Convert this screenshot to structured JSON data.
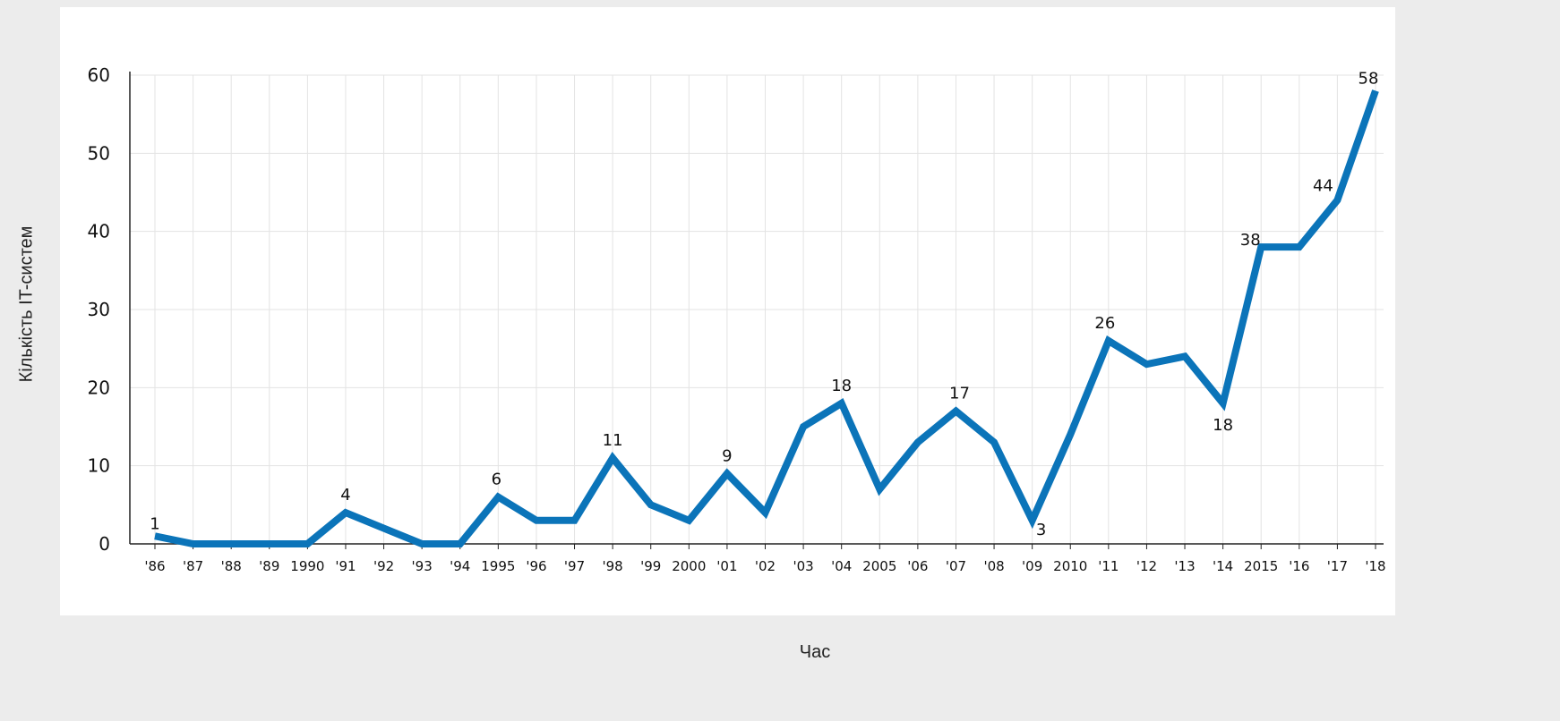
{
  "chart_data": {
    "type": "line",
    "title": "",
    "xlabel": "Час",
    "ylabel": "Кількість IT-систем",
    "ylim": [
      0,
      60
    ],
    "yticks": [
      "0",
      "10",
      "20",
      "30",
      "40",
      "50",
      "60"
    ],
    "grid": true,
    "categories": [
      "'86",
      "'87",
      "'88",
      "'89",
      "1990",
      "'91",
      "'92",
      "'93",
      "'94",
      "1995",
      "'96",
      "'97",
      "'98",
      "'99",
      "2000",
      "'01",
      "'02",
      "'03",
      "'04",
      "2005",
      "'06",
      "'07",
      "'08",
      "'09",
      "2010",
      "'11",
      "'12",
      "'13",
      "'14",
      "2015",
      "'16",
      "'17",
      "'18"
    ],
    "series": [
      {
        "values": [
          1,
          0,
          0,
          0,
          0,
          4,
          2,
          0,
          0,
          6,
          3,
          3,
          11,
          5,
          3,
          9,
          4,
          15,
          18,
          7,
          13,
          17,
          13,
          3,
          14,
          26,
          23,
          24,
          18,
          38,
          38,
          44,
          58
        ]
      }
    ],
    "data_labels": [
      {
        "index": 0,
        "text": "1"
      },
      {
        "index": 5,
        "text": "4"
      },
      {
        "index": 9,
        "text": "6"
      },
      {
        "index": 12,
        "text": "11"
      },
      {
        "index": 15,
        "text": "9"
      },
      {
        "index": 18,
        "text": "18"
      },
      {
        "index": 21,
        "text": "17"
      },
      {
        "index": 23,
        "text": "3"
      },
      {
        "index": 25,
        "text": "26"
      },
      {
        "index": 28,
        "text": "18"
      },
      {
        "index": 29,
        "text": "38"
      },
      {
        "index": 31,
        "text": "44"
      },
      {
        "index": 32,
        "text": "58"
      }
    ],
    "colors": {
      "line": "#0b74b9",
      "grid": "#e3e3e3",
      "axis": "#222222"
    }
  }
}
